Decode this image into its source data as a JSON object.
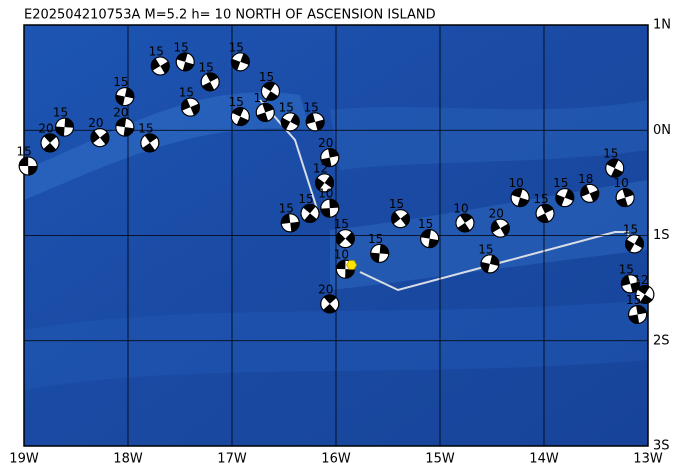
{
  "title": "E202504210753A M=5.2 h= 10 NORTH OF ASCENSION ISLAND",
  "lon_range": [
    -19,
    -13
  ],
  "lat_range": [
    -3,
    1
  ],
  "lon_ticks": [
    {
      "value": -19,
      "label": "19W"
    },
    {
      "value": -18,
      "label": "18W"
    },
    {
      "value": -17,
      "label": "17W"
    },
    {
      "value": -16,
      "label": "16W"
    },
    {
      "value": -15,
      "label": "15W"
    },
    {
      "value": -14,
      "label": "14W"
    },
    {
      "value": -13,
      "label": "13W"
    }
  ],
  "lat_ticks": [
    {
      "value": 1,
      "label": "1N"
    },
    {
      "value": 0,
      "label": "0N"
    },
    {
      "value": -1,
      "label": "1S"
    },
    {
      "value": -2,
      "label": "2S"
    },
    {
      "value": -3,
      "label": "3S"
    }
  ],
  "epicenter": {
    "lon": -15.85,
    "lat": -1.28
  },
  "events": [
    {
      "lon": -18.96,
      "lat": -0.34,
      "depth": 15
    },
    {
      "lon": -18.75,
      "lat": -0.12,
      "depth": 20
    },
    {
      "lon": -18.61,
      "lat": 0.03,
      "depth": 15
    },
    {
      "lon": -18.27,
      "lat": -0.07,
      "depth": 20
    },
    {
      "lon": -18.03,
      "lat": 0.03,
      "depth": 20
    },
    {
      "lon": -17.79,
      "lat": -0.12,
      "depth": 15
    },
    {
      "lon": -18.03,
      "lat": 0.32,
      "depth": 15
    },
    {
      "lon": -17.69,
      "lat": 0.61,
      "depth": 15
    },
    {
      "lon": -17.45,
      "lat": 0.65,
      "depth": 15
    },
    {
      "lon": -17.21,
      "lat": 0.46,
      "depth": 15
    },
    {
      "lon": -16.92,
      "lat": 0.65,
      "depth": 15
    },
    {
      "lon": -17.4,
      "lat": 0.22,
      "depth": 15
    },
    {
      "lon": -16.92,
      "lat": 0.13,
      "depth": 15
    },
    {
      "lon": -16.68,
      "lat": 0.17,
      "depth": 15
    },
    {
      "lon": -16.44,
      "lat": 0.08,
      "depth": 15
    },
    {
      "lon": -16.2,
      "lat": 0.08,
      "depth": 15
    },
    {
      "lon": -16.63,
      "lat": 0.37,
      "depth": 15
    },
    {
      "lon": -16.06,
      "lat": -0.26,
      "depth": 20
    },
    {
      "lon": -16.11,
      "lat": -0.5,
      "depth": 12
    },
    {
      "lon": -16.44,
      "lat": -0.88,
      "depth": 15
    },
    {
      "lon": -16.25,
      "lat": -0.79,
      "depth": 15
    },
    {
      "lon": -16.06,
      "lat": -0.74,
      "depth": 10
    },
    {
      "lon": -15.91,
      "lat": -1.03,
      "depth": 15
    },
    {
      "lon": -15.91,
      "lat": -1.32,
      "depth": 10
    },
    {
      "lon": -16.06,
      "lat": -1.65,
      "depth": 20
    },
    {
      "lon": -15.58,
      "lat": -1.17,
      "depth": 15
    },
    {
      "lon": -15.38,
      "lat": -0.84,
      "depth": 15
    },
    {
      "lon": -15.1,
      "lat": -1.03,
      "depth": 15
    },
    {
      "lon": -14.76,
      "lat": -0.88,
      "depth": 10
    },
    {
      "lon": -14.52,
      "lat": -1.27,
      "depth": 15
    },
    {
      "lon": -14.42,
      "lat": -0.93,
      "depth": 20
    },
    {
      "lon": -14.23,
      "lat": -0.64,
      "depth": 10
    },
    {
      "lon": -13.99,
      "lat": -0.79,
      "depth": 15
    },
    {
      "lon": -13.8,
      "lat": -0.64,
      "depth": 15
    },
    {
      "lon": -13.56,
      "lat": -0.6,
      "depth": 18
    },
    {
      "lon": -13.32,
      "lat": -0.36,
      "depth": 15
    },
    {
      "lon": -13.22,
      "lat": -0.64,
      "depth": 10
    },
    {
      "lon": -13.13,
      "lat": -1.08,
      "depth": 15
    },
    {
      "lon": -13.17,
      "lat": -1.46,
      "depth": 15
    },
    {
      "lon": -13.03,
      "lat": -1.56,
      "depth": 12
    },
    {
      "lon": -13.1,
      "lat": -1.75,
      "depth": 15
    }
  ]
}
